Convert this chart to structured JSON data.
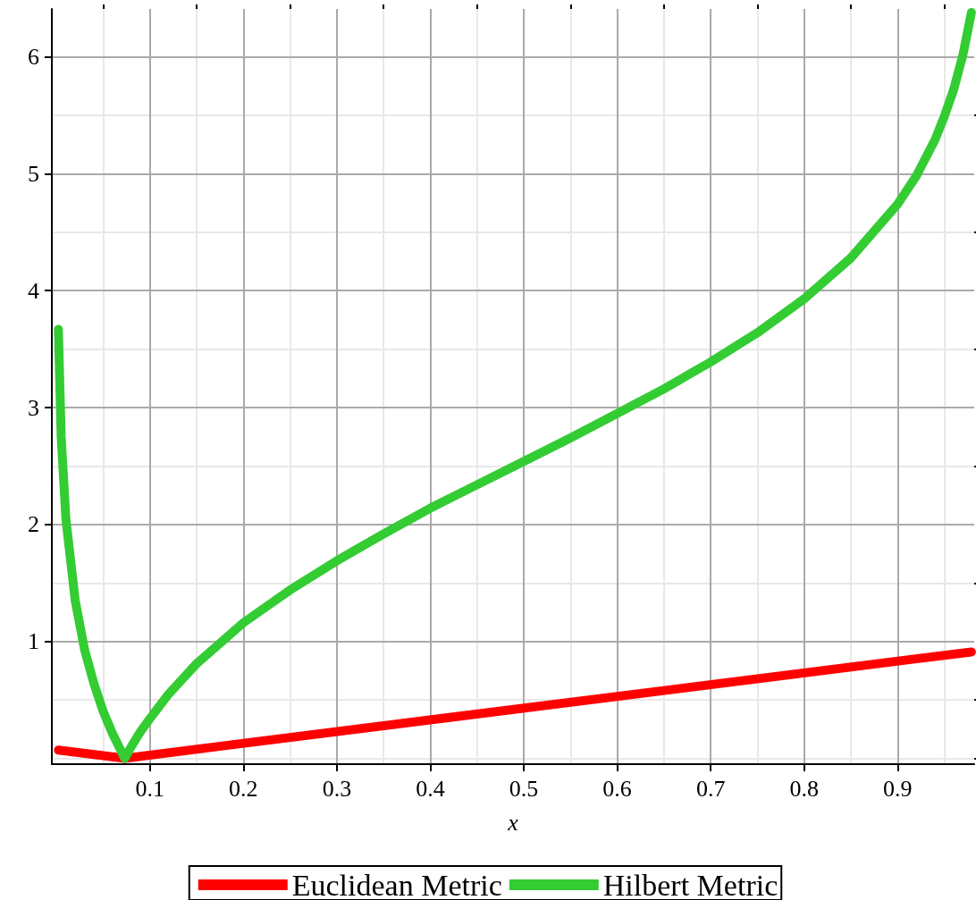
{
  "chart_data": {
    "type": "line",
    "xlabel": "x",
    "xlim": [
      -0.005,
      0.982
    ],
    "ylim": [
      -0.05,
      6.41
    ],
    "xticks": [
      {
        "value": 0.05,
        "label": null
      },
      0.1,
      {
        "value": 0.15,
        "label": null
      },
      0.2,
      {
        "value": 0.25,
        "label": null
      },
      0.3,
      {
        "value": 0.35,
        "label": null
      },
      0.4,
      {
        "value": 0.45,
        "label": null
      },
      0.5,
      {
        "value": 0.55,
        "label": null
      },
      0.6,
      {
        "value": 0.65,
        "label": null
      },
      0.7,
      {
        "value": 0.75,
        "label": null
      },
      0.8,
      {
        "value": 0.85,
        "label": null
      },
      0.9,
      {
        "value": 0.95,
        "label": null
      }
    ],
    "yticks": [
      {
        "value": 0,
        "label": null
      },
      {
        "value": 0.5,
        "label": null
      },
      1,
      {
        "value": 1.5,
        "label": null
      },
      2,
      {
        "value": 2.5,
        "label": null
      },
      3,
      {
        "value": 3.5,
        "label": null
      },
      4,
      {
        "value": 4.5,
        "label": null
      },
      5,
      {
        "value": 5.5,
        "label": null
      },
      6
    ],
    "grid": true,
    "legend": "bottom",
    "marker": "none",
    "line_style": "solid",
    "series": [
      {
        "name": "Euclidean Metric",
        "color": "#ff0000",
        "x": [
          0.002,
          0.073,
          0.979
        ],
        "values": [
          0.07,
          0,
          0.91
        ]
      },
      {
        "name": "Hilbert Metric",
        "color": "#33cc33",
        "x": [
          0.002,
          0.005,
          0.01,
          0.02,
          0.03,
          0.04,
          0.05,
          0.06,
          0.073,
          0.08,
          0.09,
          0.1,
          0.12,
          0.15,
          0.2,
          0.25,
          0.3,
          0.35,
          0.4,
          0.45,
          0.5,
          0.55,
          0.6,
          0.65,
          0.7,
          0.75,
          0.8,
          0.85,
          0.9,
          0.92,
          0.94,
          0.95,
          0.96,
          0.97,
          0.979
        ],
        "values": [
          3.67,
          2.75,
          2.05,
          1.35,
          0.93,
          0.64,
          0.4,
          0.21,
          0,
          0.1,
          0.23,
          0.34,
          0.55,
          0.81,
          1.16,
          1.44,
          1.69,
          1.92,
          2.14,
          2.34,
          2.54,
          2.74,
          2.95,
          3.16,
          3.39,
          3.64,
          3.93,
          4.28,
          4.74,
          4.98,
          5.29,
          5.49,
          5.72,
          6.02,
          6.38
        ]
      }
    ]
  }
}
